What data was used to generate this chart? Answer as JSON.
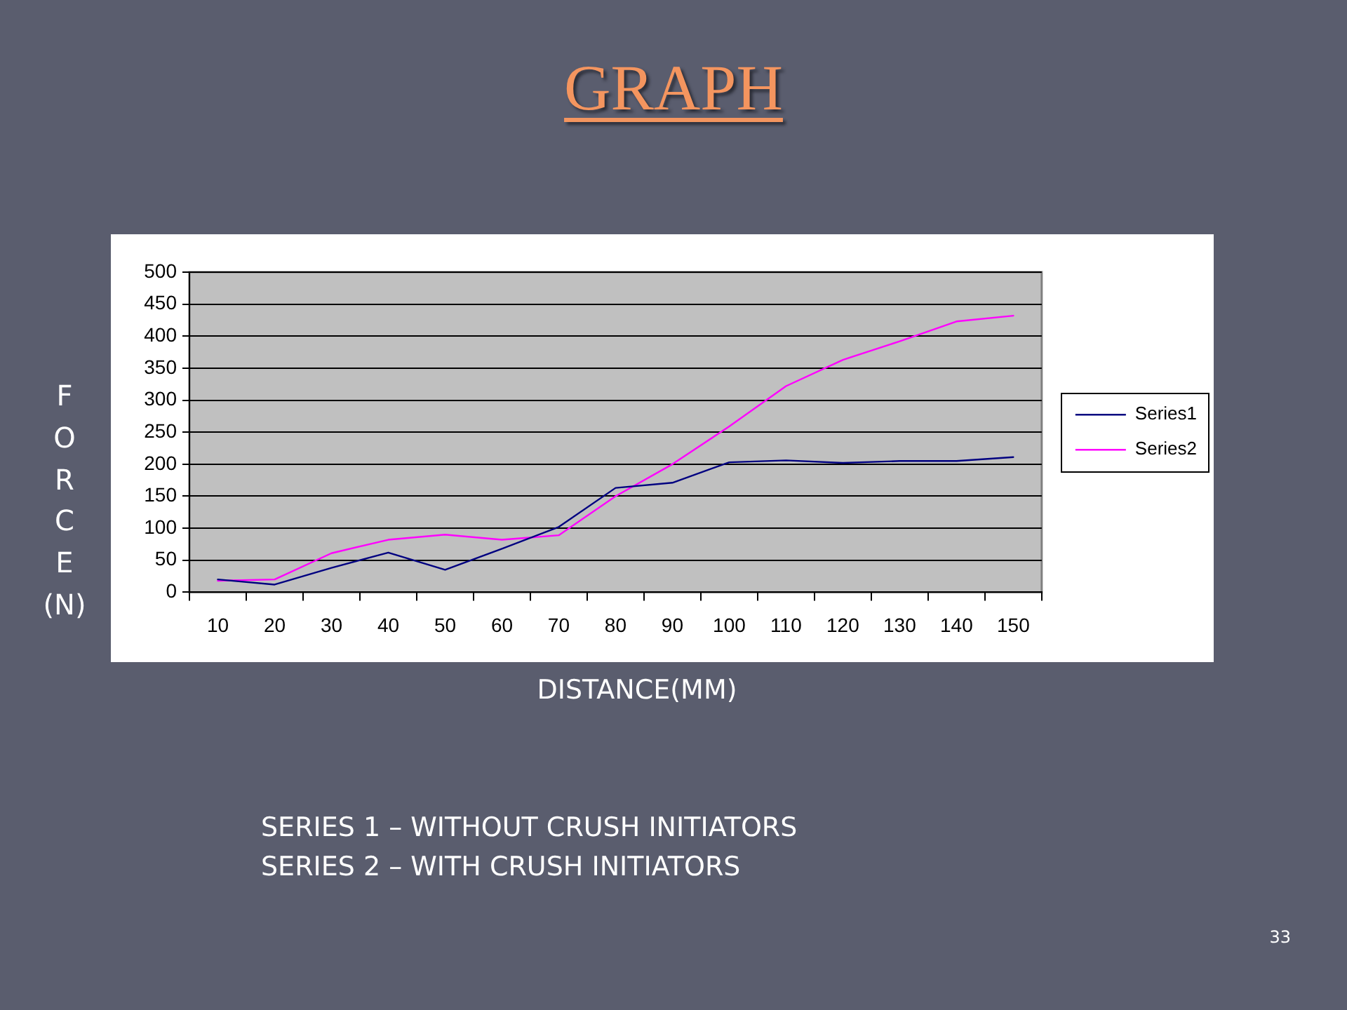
{
  "chart_data": {
    "type": "line",
    "title": "GRAPH",
    "xlabel": "DISTANCE(MM)",
    "ylabel": "F\nO\nR\nC\nE\n(N)",
    "categories": [
      "10",
      "20",
      "30",
      "40",
      "50",
      "60",
      "70",
      "80",
      "90",
      "100",
      "110",
      "120",
      "130",
      "140",
      "150"
    ],
    "series": [
      {
        "name": "Series1",
        "color": "#000080",
        "values": [
          20,
          12,
          38,
          62,
          35,
          68,
          102,
          163,
          171,
          203,
          206,
          202,
          205,
          205,
          211
        ]
      },
      {
        "name": "Series2",
        "color": "#ff00ff",
        "values": [
          18,
          20,
          61,
          82,
          90,
          82,
          89,
          150,
          200,
          259,
          322,
          363,
          392,
          423,
          432
        ]
      }
    ],
    "ylim": [
      0,
      500
    ],
    "yticks": [
      0,
      50,
      100,
      150,
      200,
      250,
      300,
      350,
      400,
      450,
      500
    ],
    "grid": "y",
    "legend": "right",
    "marker": "none",
    "line_style": "solid",
    "annotations": [
      "SERIES 1 – WITHOUT CRUSH INITIATORS",
      "SERIES 2 – WITH CRUSH INITIATORS",
      "33"
    ]
  }
}
